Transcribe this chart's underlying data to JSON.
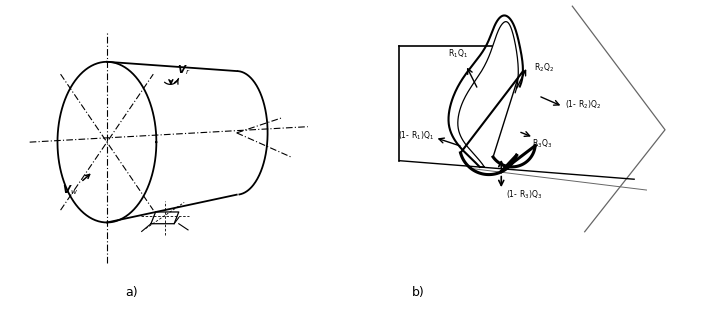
{
  "bg_color": "#ffffff",
  "line_color": "#000000",
  "gray_color": "#666666",
  "label_a": "a)",
  "label_b": "b)",
  "label_vr": "V$_r$",
  "label_vw": "V$_w$",
  "label_R1Q1": "R$_1$Q$_1$",
  "label_R2Q2": "R$_2$Q$_2$",
  "label_R3Q3": "R$_3$Q$_3$",
  "label_1mR1Q1": "(1- R$_1$)Q$_1$",
  "label_1mR2Q2": "(1- R$_2$)Q$_2$",
  "label_1mR3Q3": "(1- R$_3$)Q$_3$"
}
